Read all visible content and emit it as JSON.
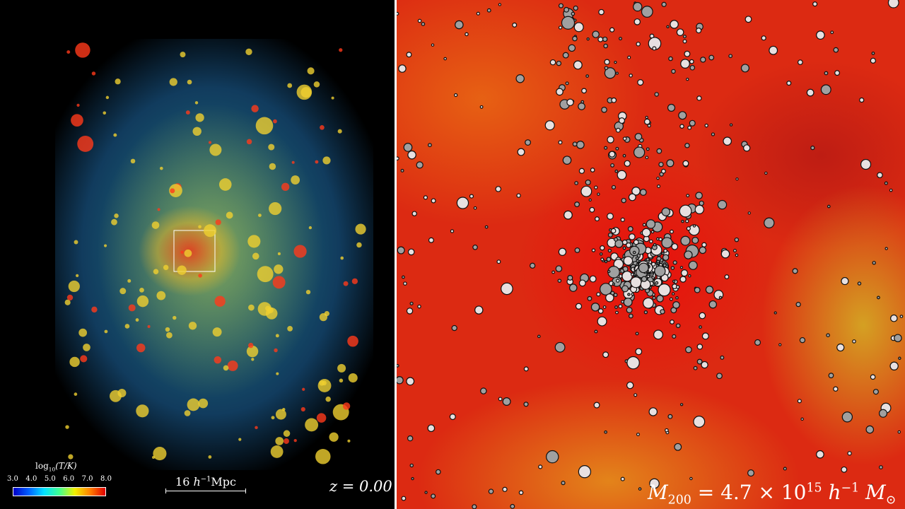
{
  "left_panel": {
    "colorbar": {
      "label": {
        "prefix": "log",
        "sub": "10",
        "body": "(T/K)"
      },
      "ticks": [
        "3.0",
        "4.0",
        "5.0",
        "6.0",
        "7.0",
        "8.0"
      ]
    },
    "scale_bar": {
      "number": "16",
      "unit_h": "h",
      "exponent": "−1",
      "unit": "Mpc"
    },
    "redshift": "z = 0.00"
  },
  "right_panel": {
    "mass_label": {
      "symbol": "M",
      "sub": "200",
      "middle": " = 4.7 × 10",
      "exponent": "15",
      "h": " h",
      "h_exp": "−1",
      "m": " M",
      "m_sub": "⊙"
    }
  }
}
